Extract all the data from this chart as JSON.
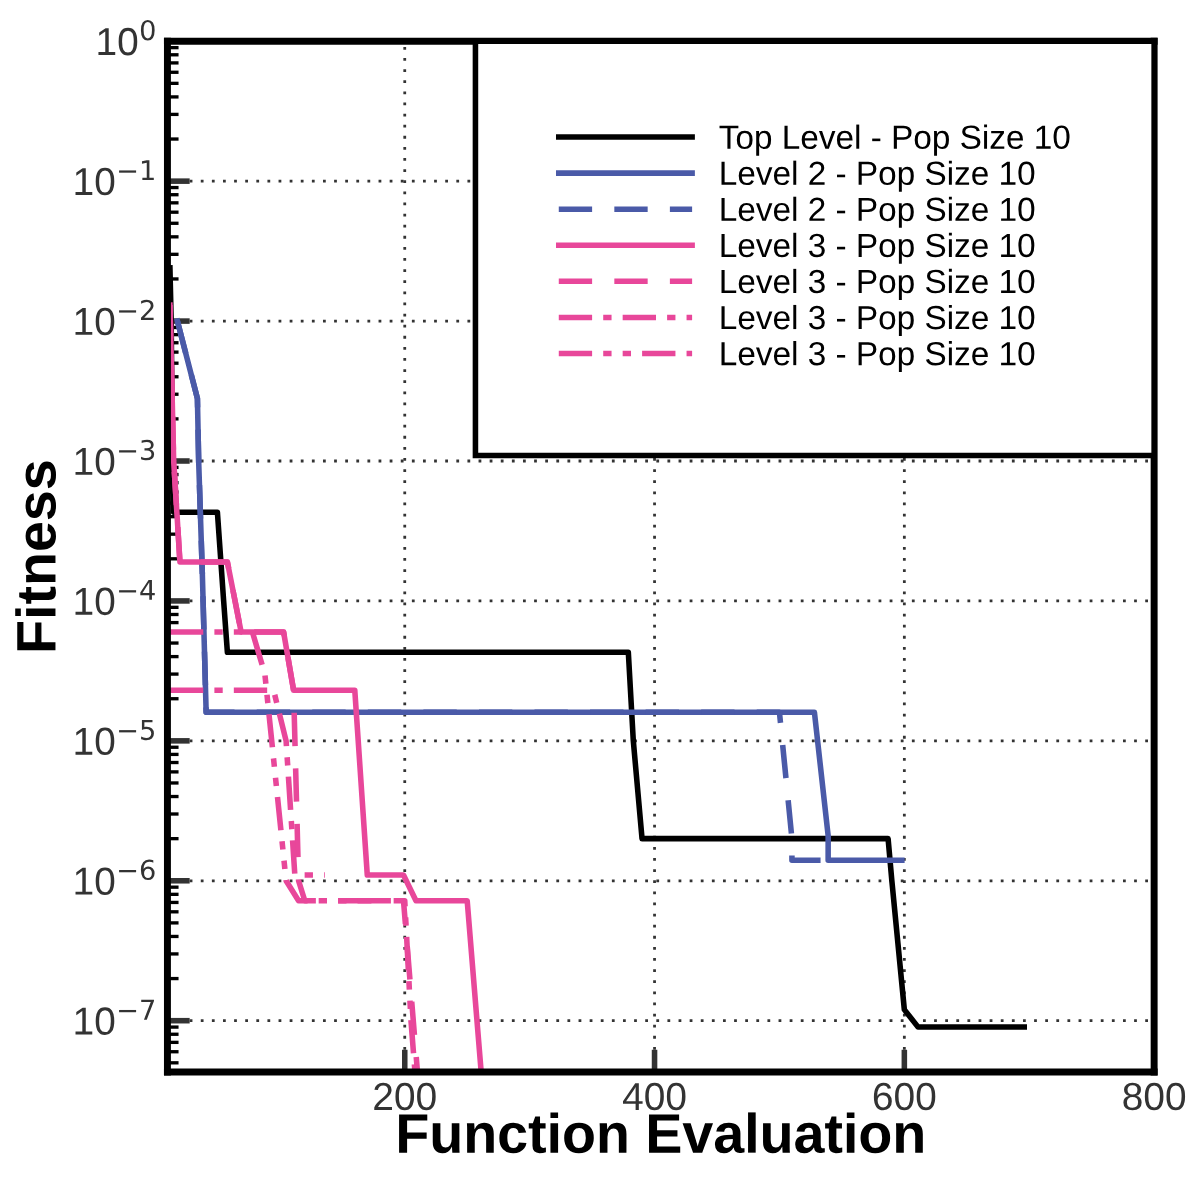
{
  "chart_data": {
    "type": "line",
    "xlabel": "Function Evaluation",
    "ylabel": "Fitness",
    "log": "y",
    "grid": true,
    "legend": "top right",
    "marker": "none",
    "xlim": [
      10,
      800
    ],
    "xticks": [
      200,
      400,
      600,
      800
    ],
    "ylim": [
      4.3e-08,
      1
    ],
    "yticks": [
      {
        "value": 1e-07,
        "label": "10$^{−7}$"
      },
      {
        "value": 1e-06,
        "label": "10$^{−6}$"
      },
      {
        "value": 1e-05,
        "label": "10$^{−5}$"
      },
      {
        "value": 0.0001,
        "label": "10$^{−4}$"
      },
      {
        "value": 0.001,
        "label": "10$^{−3}$"
      },
      {
        "value": 0.01,
        "label": "10$^{−2}$"
      },
      {
        "value": 0.1,
        "label": "10$^{−1}$"
      },
      {
        "value": 1,
        "label": "10$^{0}$"
      }
    ],
    "series": [
      {
        "name": "Top Level - Pop Size 10",
        "color": "#000000",
        "line_style": "solid",
        "x": [
          12,
          13,
          14,
          15,
          50,
          55,
          58,
          379,
          383,
          390,
          587,
          590,
          600,
          611,
          696
        ],
        "values": [
          0.024,
          0.01,
          0.001,
          0.00043,
          0.00043,
          0.0001,
          4.3e-05,
          4.3e-05,
          1e-05,
          2e-06,
          2e-06,
          1e-06,
          1.2e-07,
          9e-08,
          9e-08
        ]
      },
      {
        "name": "Level 2 - Pop Size 10",
        "color": "#4a5aa8",
        "line_style": "solid",
        "x": [
          18,
          34,
          35,
          38,
          41,
          528,
          539,
          539,
          598
        ],
        "values": [
          0.01,
          0.0028,
          0.001,
          0.00015,
          1.6e-05,
          1.6e-05,
          2.1e-06,
          1.4e-06,
          1.4e-06
        ]
      },
      {
        "name": "Level 2 - Pop Size 10",
        "color": "#4a5aa8",
        "line_style": "dashed",
        "x": [
          18,
          34,
          35,
          38,
          41,
          500,
          510,
          510,
          535
        ],
        "values": [
          0.01,
          0.0028,
          0.001,
          0.00015,
          1.6e-05,
          1.6e-05,
          2e-06,
          1.4e-06,
          1.4e-06
        ]
      },
      {
        "name": "Level 3 - Pop Size 10",
        "color": "#e8479a",
        "line_style": "solid",
        "x": [
          12,
          15,
          20,
          58,
          69,
          103,
          111,
          160,
          170,
          199,
          209,
          250,
          261
        ],
        "values": [
          0.013,
          0.001,
          0.00019,
          0.00019,
          6e-05,
          6e-05,
          2.3e-05,
          2.3e-05,
          1.1e-06,
          1.1e-06,
          7.2e-07,
          7.2e-07,
          4.5e-08
        ]
      },
      {
        "name": "Level 3 - Pop Size 10",
        "color": "#e8479a",
        "line_style": "dashed",
        "x": [
          12,
          15,
          20,
          58,
          69,
          103,
          111,
          115,
          120,
          199,
          210
        ],
        "values": [
          0.013,
          0.001,
          0.00019,
          0.00019,
          6e-05,
          6e-05,
          2.3e-05,
          1e-06,
          7.2e-07,
          7.2e-07,
          4.5e-08
        ]
      },
      {
        "name": "Level 3 - Pop Size 10",
        "color": "#e8479a",
        "line_style": "dashdot",
        "x": [
          12,
          95,
          105,
          112,
          136
        ],
        "values": [
          2.3e-05,
          2.3e-05,
          1e-05,
          1.1e-06,
          1.1e-06
        ]
      },
      {
        "name": "Level 3 - Pop Size 10",
        "color": "#e8479a",
        "line_style": "dashdotdot",
        "x": [
          12,
          78,
          88,
          105,
          115,
          200,
          205,
          208
        ],
        "values": [
          6e-05,
          6e-05,
          3e-05,
          1e-06,
          7.2e-07,
          7.2e-07,
          1e-07,
          4.5e-08
        ]
      }
    ]
  }
}
